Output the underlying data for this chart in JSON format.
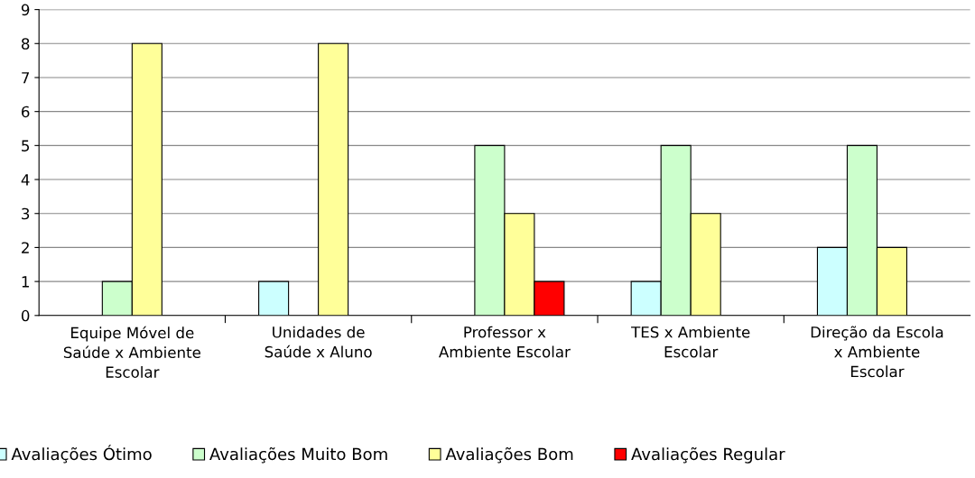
{
  "chart_data": {
    "type": "bar",
    "categories": [
      "Equipe Móvel de\nSaúde x Ambiente\nEscolar",
      "Unidades de\nSaúde x Aluno",
      "Professor x\nAmbiente Escolar",
      "TES x Ambiente\nEscolar",
      "Direção da Escola\nx Ambiente\nEscolar"
    ],
    "series": [
      {
        "name": "Avaliações Ótimo",
        "color": "#ccffff",
        "values": [
          null,
          1,
          null,
          1,
          2
        ]
      },
      {
        "name": "Avaliações Muito Bom",
        "color": "#ccffcc",
        "values": [
          1,
          null,
          5,
          5,
          5
        ]
      },
      {
        "name": "Avaliações Bom",
        "color": "#ffff99",
        "values": [
          8,
          8,
          3,
          3,
          2
        ]
      },
      {
        "name": "Avaliações Regular",
        "color": "#ff0000",
        "values": [
          null,
          null,
          1,
          null,
          null
        ]
      }
    ],
    "ylim": [
      0,
      9
    ],
    "yticks": [
      0,
      1,
      2,
      3,
      4,
      5,
      6,
      7,
      8,
      9
    ],
    "grid": "y",
    "legend": "bottom"
  }
}
